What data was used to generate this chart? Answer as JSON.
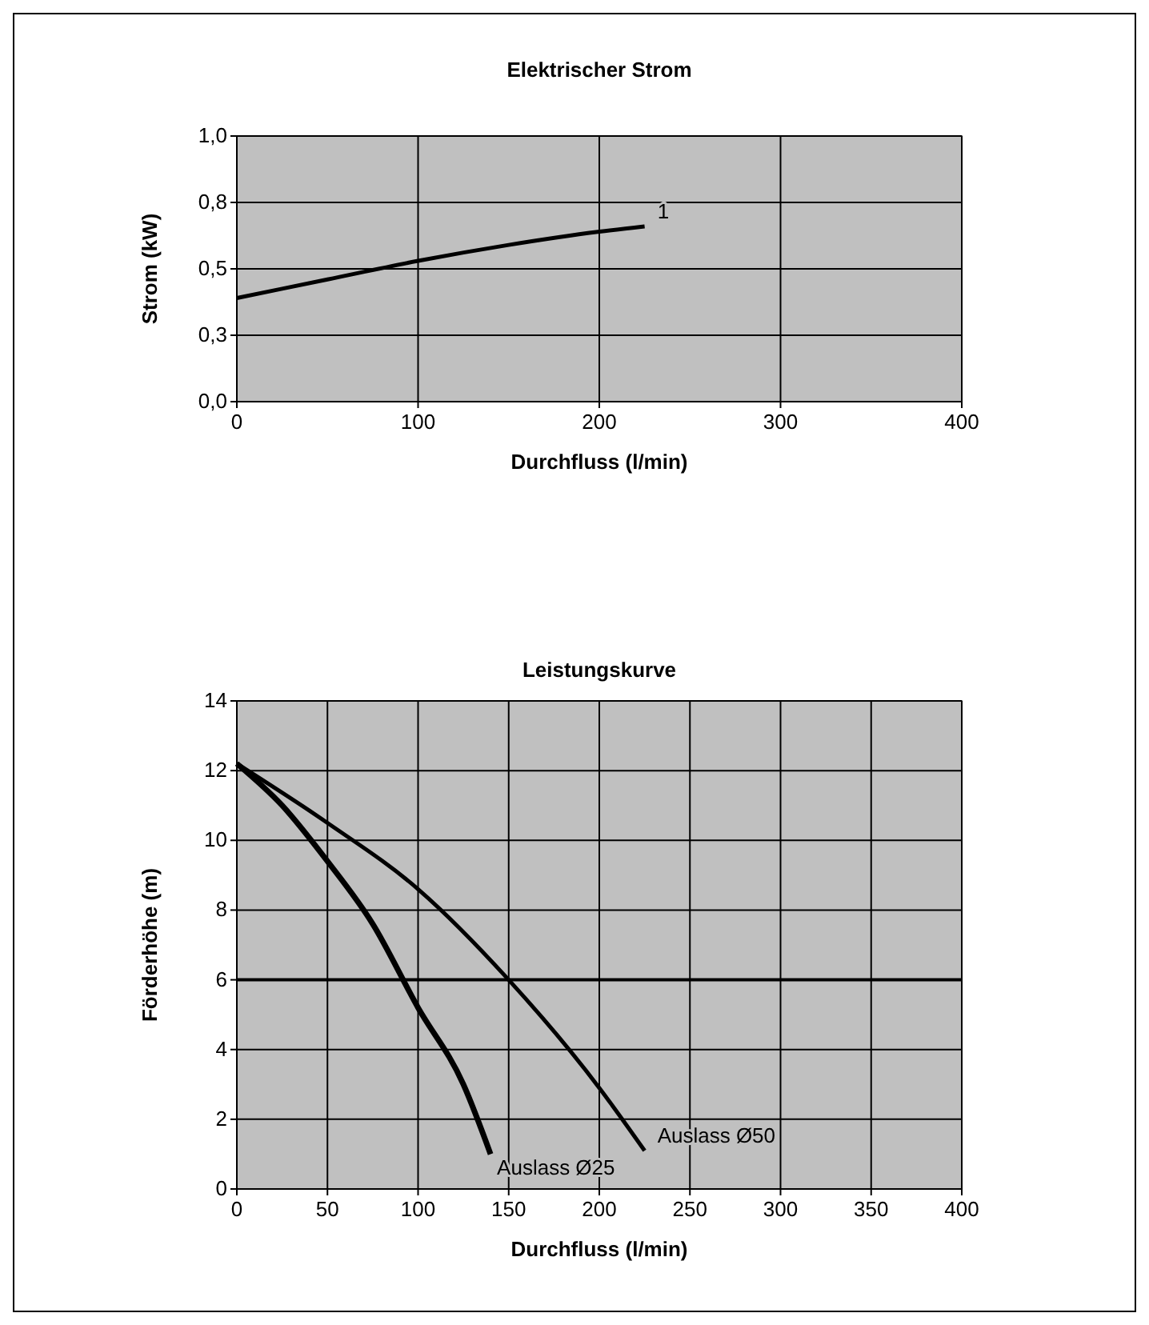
{
  "chart_data": [
    {
      "type": "line",
      "title": "Elektrischer Strom",
      "xlabel": "Durchfluss (l/min)",
      "ylabel": "Strom (kW)",
      "xlim": [
        0,
        400
      ],
      "xticks": [
        0,
        100,
        200,
        300,
        400
      ],
      "ylim": [
        0,
        1
      ],
      "yticks": [
        {
          "value": 0,
          "label": "0,0"
        },
        {
          "value": 0.25,
          "label": "0,3"
        },
        {
          "value": 0.5,
          "label": "0,5"
        },
        {
          "value": 0.75,
          "label": "0,8"
        },
        {
          "value": 1,
          "label": "1,0"
        }
      ],
      "grid": true,
      "series": [
        {
          "name": "1",
          "color": "#000000",
          "x": [
            0,
            50,
            100,
            150,
            200,
            225
          ],
          "values": [
            0.39,
            0.46,
            0.53,
            0.59,
            0.64,
            0.66
          ]
        }
      ]
    },
    {
      "type": "line",
      "title": "Leistungskurve",
      "xlabel": "Durchfluss (l/min)",
      "ylabel": "Förderhöhe (m)",
      "xlim": [
        0,
        400
      ],
      "xticks": [
        0,
        50,
        100,
        150,
        200,
        250,
        300,
        350,
        400
      ],
      "ylim": [
        0,
        14
      ],
      "yticks": [
        0,
        2,
        4,
        6,
        8,
        10,
        12,
        14
      ],
      "grid": true,
      "ref_lines": [
        {
          "axis": "y",
          "value": 6,
          "color": "#000000"
        }
      ],
      "series": [
        {
          "name": "Auslass Ø25",
          "color": "#000000",
          "x": [
            0,
            25,
            50,
            75,
            100,
            125,
            140
          ],
          "values": [
            12.2,
            11,
            9.4,
            7.6,
            5.2,
            3.0,
            1.0
          ]
        },
        {
          "name": "Auslass Ø50",
          "color": "#000000",
          "x": [
            0,
            50,
            100,
            150,
            200,
            225
          ],
          "values": [
            12.2,
            10.5,
            8.6,
            6,
            2.9,
            1.1
          ]
        }
      ]
    }
  ]
}
